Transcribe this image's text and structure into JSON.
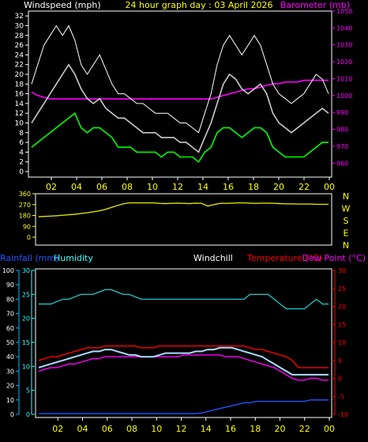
{
  "chart_data": [
    {
      "type": "line",
      "title": "24 hour graph day : 03 April 2026",
      "left_label": "Windspeed (mph)",
      "right_label": "Barometer (mb)",
      "ylim_left": [
        0,
        33
      ],
      "ylim_right": [
        955,
        1050
      ],
      "left_ticks": [
        "0",
        "2",
        "4",
        "6",
        "8",
        "10",
        "12",
        "14",
        "16",
        "18",
        "20",
        "22",
        "24",
        "26",
        "28",
        "30",
        "32"
      ],
      "right_ticks": [
        "960",
        "970",
        "980",
        "990",
        "1000",
        "1010",
        "1020",
        "1030",
        "1040",
        "1050"
      ],
      "x_ticks": [
        "02",
        "04",
        "06",
        "08",
        "10",
        "12",
        "14",
        "16",
        "18",
        "20",
        "22",
        "00"
      ],
      "colors": {
        "gust": "#ffffff",
        "avg": "#cccccc",
        "low": "#00ff00",
        "baro": "#ff00ff",
        "left_axis": "#ffffff",
        "right_axis": "#ff00ff",
        "title": "#ffff00",
        "xticks": "#ffff00"
      },
      "series": [
        {
          "key": "baro",
          "values": [
            1002,
            1000,
            999,
            998,
            998,
            998,
            998,
            998,
            998,
            998,
            998,
            998,
            998,
            998,
            998,
            998,
            998,
            998,
            998,
            998,
            998,
            998,
            998,
            998,
            998,
            998,
            998,
            998,
            998,
            998,
            999,
            1000,
            1001,
            1002,
            1003,
            1004,
            1004,
            1005,
            1006,
            1007,
            1007,
            1008,
            1008,
            1008,
            1009,
            1009,
            1009,
            1009,
            1009
          ]
        },
        {
          "key": "low",
          "values": [
            5,
            6,
            7,
            8,
            9,
            10,
            11,
            12,
            9,
            8,
            9,
            9,
            8,
            7,
            5,
            5,
            5,
            4,
            4,
            4,
            4,
            3,
            4,
            4,
            3,
            3,
            3,
            2,
            4,
            5,
            8,
            9,
            9,
            8,
            7,
            8,
            9,
            9,
            8,
            5,
            4,
            3,
            3,
            3,
            3,
            4,
            5,
            6,
            6
          ]
        },
        {
          "key": "avg",
          "values": [
            10,
            12,
            14,
            16,
            18,
            20,
            22,
            20,
            17,
            15,
            14,
            15,
            13,
            12,
            11,
            11,
            10,
            9,
            8,
            8,
            8,
            7,
            7,
            7,
            6,
            6,
            5,
            4,
            7,
            10,
            14,
            18,
            20,
            19,
            17,
            16,
            17,
            18,
            16,
            12,
            10,
            9,
            8,
            9,
            10,
            11,
            12,
            13,
            12
          ]
        },
        {
          "key": "gust",
          "values": [
            18,
            22,
            26,
            28,
            30,
            28,
            30,
            27,
            22,
            20,
            22,
            24,
            21,
            18,
            16,
            16,
            15,
            14,
            14,
            13,
            12,
            12,
            12,
            11,
            10,
            10,
            9,
            8,
            12,
            16,
            22,
            26,
            28,
            26,
            24,
            26,
            28,
            26,
            22,
            18,
            16,
            15,
            14,
            15,
            16,
            18,
            20,
            19,
            16
          ]
        }
      ]
    },
    {
      "type": "line",
      "title": "",
      "ylim": [
        0,
        360
      ],
      "left_ticks": [
        "0",
        "90",
        "180",
        "270",
        "360"
      ],
      "right_labels": [
        "N",
        "W",
        "S",
        "E",
        "N"
      ],
      "colors": {
        "dir": "#dddd00",
        "ticks": "#ffff00",
        "compass": "#ffff00"
      },
      "series": [
        {
          "key": "dir",
          "values": [
            170,
            172,
            175,
            178,
            182,
            186,
            190,
            196,
            202,
            210,
            218,
            230,
            246,
            262,
            276,
            284,
            284,
            284,
            284,
            284,
            280,
            278,
            280,
            282,
            280,
            278,
            282,
            280,
            258,
            270,
            280,
            280,
            282,
            284,
            284,
            282,
            280,
            282,
            282,
            280,
            278,
            276,
            276,
            274,
            274,
            274,
            272,
            272,
            272
          ]
        }
      ]
    },
    {
      "type": "line",
      "title": "",
      "labels": {
        "rainfall": "Rainfall (mm)",
        "humidity": "Humidity",
        "windchill": "Windchill",
        "temperature": "Temperature (°C)",
        "dewpoint": "Dew Point (°C)"
      },
      "ylim_rain": [
        0,
        100
      ],
      "ylim_humidity": [
        0,
        30
      ],
      "ylim_temp": [
        -10,
        30
      ],
      "rain_ticks": [
        "0",
        "10",
        "20",
        "30",
        "40",
        "50",
        "60",
        "70",
        "80",
        "90",
        "100"
      ],
      "humidity_ticks": [
        "0",
        "5",
        "10",
        "15",
        "20",
        "25",
        "30"
      ],
      "temp_ticks": [
        "-10",
        "-5",
        "0",
        "5",
        "10",
        "15",
        "20",
        "25",
        "30"
      ],
      "x_ticks": [
        "02",
        "04",
        "06",
        "08",
        "10",
        "12",
        "14",
        "16",
        "18",
        "20",
        "22",
        "00"
      ],
      "colors": {
        "humidity": "#22bbbb",
        "temperature": "#ff0000",
        "dewpoint": "#ff00ff",
        "windchill": "#aaddff",
        "rainfall": "#2255ff",
        "rain_axis": "#00bbff",
        "humidity_axis": "#33ffff",
        "temp_axis": "#ff0000",
        "windchill_label": "#ffffff",
        "xticks": "#ffff00"
      },
      "series": [
        {
          "key": "humidity",
          "values": [
            23,
            23,
            23,
            23.5,
            24,
            24,
            24.5,
            25,
            25,
            25,
            25.5,
            26,
            26,
            25.5,
            25,
            25,
            24.5,
            24,
            24,
            24,
            24,
            24,
            24,
            24,
            24,
            24,
            24,
            24,
            24,
            24,
            24,
            24,
            24,
            24,
            24,
            25,
            25,
            25,
            25,
            24,
            23,
            22,
            22,
            22,
            22,
            23,
            24,
            23,
            23
          ]
        },
        {
          "key": "temperature",
          "values": [
            5,
            5.5,
            6,
            6,
            6.5,
            7,
            7.5,
            8,
            8.5,
            8.5,
            8.5,
            9,
            9,
            9,
            9,
            9,
            9,
            8.5,
            8.5,
            8.5,
            9,
            9,
            9,
            9,
            9,
            9,
            9,
            9,
            9,
            9,
            9,
            9,
            9,
            9,
            9,
            8.5,
            8,
            8,
            7.5,
            7,
            6.5,
            6,
            5,
            3,
            3,
            3,
            3,
            3,
            3
          ]
        },
        {
          "key": "dewpoint",
          "values": [
            2,
            2.5,
            3,
            3,
            3.5,
            4,
            4,
            4.5,
            5,
            5.5,
            5.5,
            6,
            6,
            6,
            6,
            6,
            6,
            6,
            6,
            6,
            6,
            6,
            6,
            6,
            6.5,
            6.5,
            6.5,
            6.5,
            6.5,
            6.5,
            6.5,
            6,
            6,
            6,
            5.5,
            5,
            4.5,
            4,
            3.5,
            3,
            2,
            1,
            0,
            -0.5,
            -0.5,
            0,
            0,
            -0.5,
            -0.5
          ]
        },
        {
          "key": "windchill",
          "values": [
            3,
            3.5,
            4,
            4.5,
            5,
            5.5,
            6,
            6.5,
            7,
            7.5,
            7.5,
            8,
            8,
            7.5,
            7,
            6.5,
            6.5,
            6,
            6,
            6,
            6.5,
            7,
            7,
            7,
            7,
            7,
            7.5,
            7.5,
            8,
            8,
            8.5,
            8.5,
            8.5,
            8,
            7.5,
            7,
            6.5,
            6,
            5,
            4,
            3,
            2,
            1,
            1,
            1,
            1,
            1,
            1,
            1
          ]
        },
        {
          "key": "rainfall",
          "values": [
            0.5,
            0.5,
            0.5,
            0.5,
            0.5,
            0.5,
            0.5,
            0.5,
            0.5,
            0.5,
            0.5,
            0.5,
            0.5,
            0.5,
            0.5,
            0.5,
            0.5,
            0.5,
            0.5,
            0.5,
            0.5,
            0.5,
            0.5,
            0.5,
            0.5,
            0.5,
            0.5,
            1,
            2,
            3,
            4,
            5,
            6,
            7,
            8,
            8,
            9,
            9,
            9,
            9,
            9,
            9,
            9,
            9,
            9,
            10,
            10,
            10,
            10
          ]
        }
      ]
    }
  ]
}
